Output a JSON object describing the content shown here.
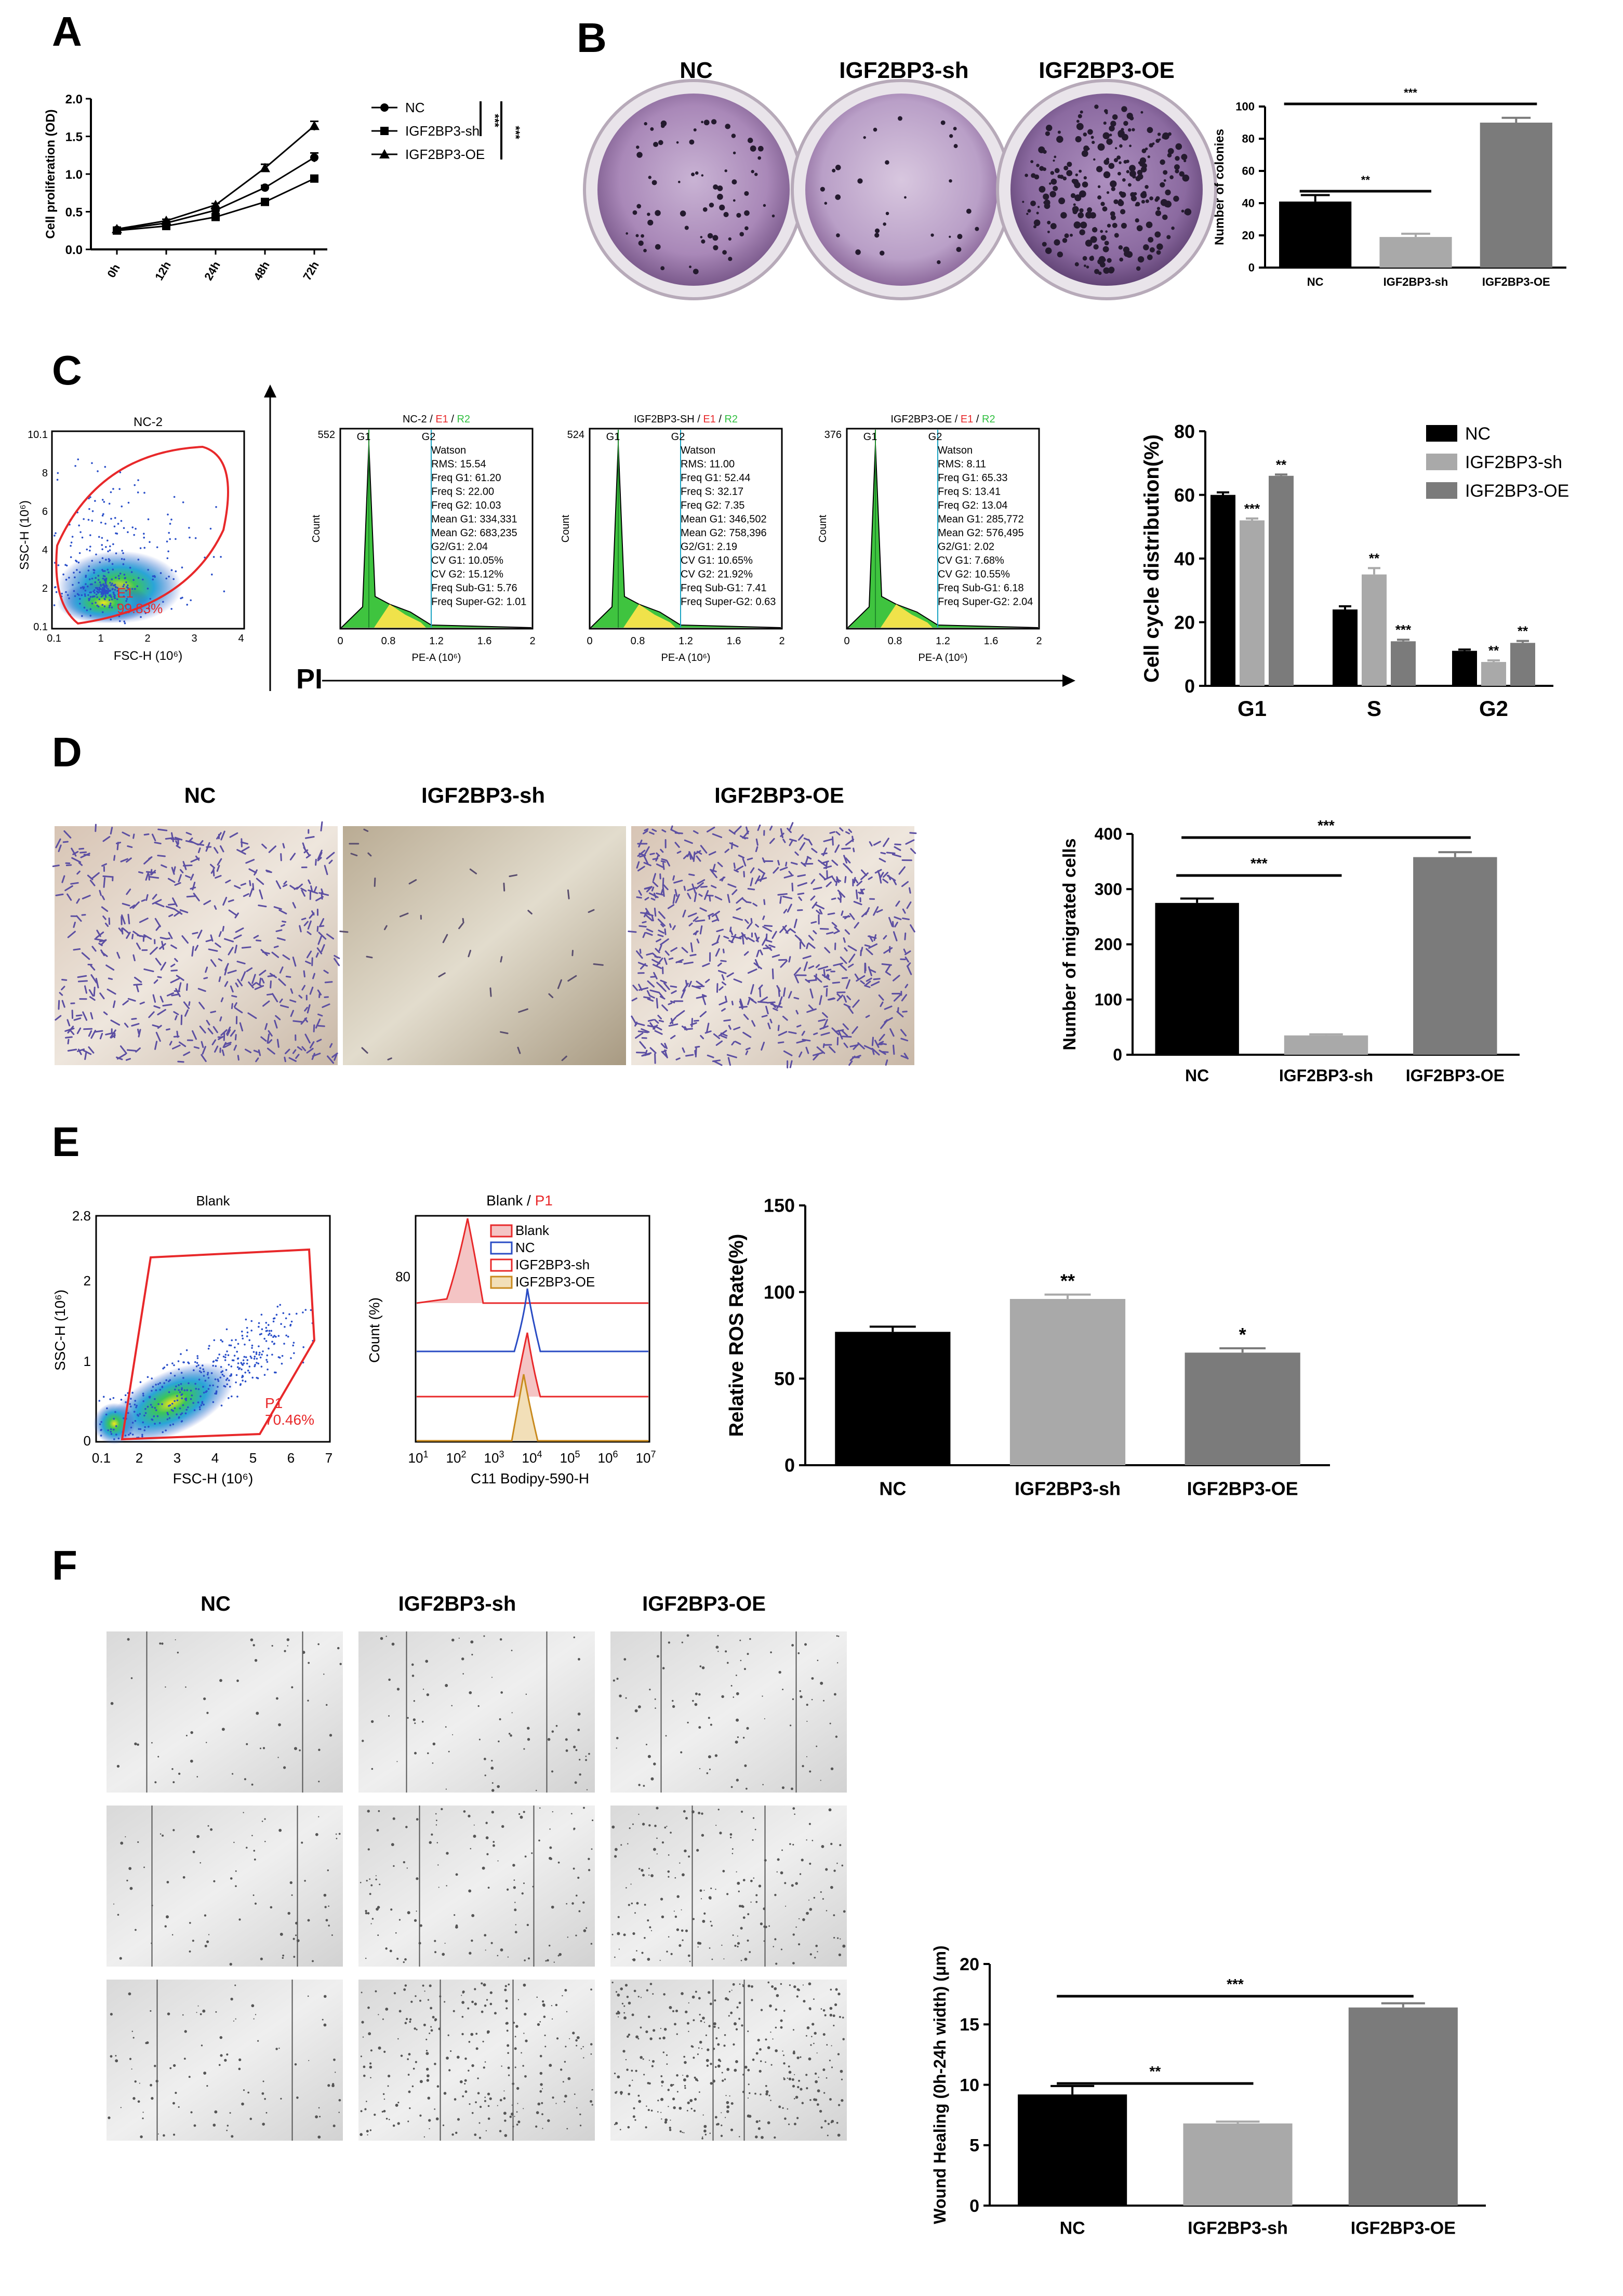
{
  "colors": {
    "black": "#000000",
    "light": "#a9a9a9",
    "dark": "#7b7b7b",
    "gate": "#e8282a",
    "green": "#2fbf3f",
    "blueline": "#2a4cc4",
    "orange": "#c98a1e"
  },
  "panels": {
    "A": "A",
    "B": "B",
    "C": "C",
    "D": "D",
    "E": "E",
    "F": "F"
  },
  "groups": {
    "nc": "NC",
    "sh": "IGF2BP3-sh",
    "oe": "IGF2BP3-OE"
  },
  "sig": {
    "s3": "***",
    "s2": "**",
    "s1": "*"
  },
  "chart_data": [
    {
      "id": "A",
      "type": "line",
      "ylabel": "Cell proliferation (OD)",
      "ylim": [
        0,
        2.0
      ],
      "yticks": [
        "0.0",
        "0.5",
        "1.0",
        "1.5",
        "2.0"
      ],
      "categories": [
        "0h",
        "12h",
        "24h",
        "48h",
        "72h"
      ],
      "series": [
        {
          "name": "NC",
          "marker": "circle",
          "values": [
            0.26,
            0.35,
            0.52,
            0.82,
            1.22
          ],
          "err": [
            0.01,
            0.02,
            0.02,
            0.03,
            0.06
          ]
        },
        {
          "name": "IGF2BP3-sh",
          "marker": "square",
          "values": [
            0.25,
            0.31,
            0.43,
            0.63,
            0.94
          ],
          "err": [
            0.01,
            0.01,
            0.02,
            0.03,
            0.02
          ]
        },
        {
          "name": "IGF2BP3-OE",
          "marker": "triangle",
          "values": [
            0.27,
            0.38,
            0.59,
            1.08,
            1.64
          ],
          "err": [
            0.01,
            0.02,
            0.02,
            0.05,
            0.06
          ]
        }
      ],
      "annotations": [
        "***",
        "***"
      ]
    },
    {
      "id": "B",
      "type": "bar",
      "ylabel": "Number of colonies",
      "ylim": [
        0,
        100
      ],
      "yticks": [
        "0",
        "20",
        "40",
        "60",
        "80",
        "100"
      ],
      "categories": [
        "NC",
        "IGF2BP3-sh",
        "IGF2BP3-OE"
      ],
      "values": [
        41,
        19,
        90
      ],
      "err": [
        4,
        2,
        3
      ]
    },
    {
      "id": "C",
      "type": "bar",
      "ylabel": "Cell cycle distribution(%)",
      "ylim": [
        0,
        80
      ],
      "yticks": [
        "0",
        "20",
        "40",
        "60",
        "80"
      ],
      "categories": [
        "G1",
        "S",
        "G2"
      ],
      "series": [
        {
          "name": "NC",
          "values": [
            60,
            24,
            11
          ],
          "err": [
            0.8,
            1,
            0.4
          ],
          "sig": [
            "",
            "",
            ""
          ]
        },
        {
          "name": "IGF2BP3-sh",
          "values": [
            52,
            35,
            7.5
          ],
          "err": [
            0.6,
            2,
            0.5
          ],
          "sig": [
            "***",
            "**",
            "**"
          ]
        },
        {
          "name": "IGF2BP3-OE",
          "values": [
            66,
            14,
            13.5
          ],
          "err": [
            0.4,
            0.5,
            0.6
          ],
          "sig": [
            "**",
            "***",
            "**"
          ]
        }
      ]
    },
    {
      "id": "D",
      "type": "bar",
      "ylabel": "Number of migrated cells",
      "ylim": [
        0,
        400
      ],
      "yticks": [
        "0",
        "100",
        "200",
        "300",
        "400"
      ],
      "categories": [
        "NC",
        "IGF2BP3-sh",
        "IGF2BP3-OE"
      ],
      "values": [
        275,
        35,
        358
      ],
      "err": [
        8,
        2,
        9
      ]
    },
    {
      "id": "E",
      "type": "bar",
      "ylabel": "Relative ROS Rate(%)",
      "ylim": [
        0,
        150
      ],
      "yticks": [
        "0",
        "50",
        "100",
        "150"
      ],
      "categories": [
        "NC",
        "IGF2BP3-sh",
        "IGF2BP3-OE"
      ],
      "values": [
        77,
        96,
        65
      ],
      "err": [
        3,
        2.5,
        2.5
      ],
      "sig": [
        "",
        "**",
        "*"
      ]
    },
    {
      "id": "F",
      "type": "bar",
      "ylabel": "Wound Healing (0h-24h width) (μm)",
      "ylim": [
        0,
        20
      ],
      "yticks": [
        "0",
        "5",
        "10",
        "15",
        "20"
      ],
      "categories": [
        "NC",
        "IGF2BP3-sh",
        "IGF2BP3-OE"
      ],
      "values": [
        9.2,
        6.8,
        16.4
      ],
      "err": [
        0.7,
        0.15,
        0.35
      ]
    }
  ],
  "flowC": {
    "scatter_title": "NC-2",
    "ylabel": "SSC-H (10⁶)",
    "xlabel": "FSC-H (10⁶)",
    "yticks": [
      "0.1",
      "2",
      "4",
      "6",
      "8",
      "10.1"
    ],
    "xticks": [
      "0.1",
      "1",
      "2",
      "3",
      "4"
    ],
    "gate_name": "E1",
    "gate_pct": "99.83%",
    "axis_label": "PI",
    "hist_xlabel": "PE-A (10⁶)",
    "hist_ylabel": "Count",
    "hist_xticks": [
      "0",
      "0.8",
      "1.2",
      "1.6",
      "2"
    ],
    "hists": [
      {
        "title": "NC-2 / ",
        "e1": "E1",
        "sep": " / ",
        "r2": "R2",
        "ymax": "552",
        "lines": [
          "Watson",
          "RMS: 15.54",
          "Freq G1: 61.20",
          "Freq S: 22.00",
          "Freq G2: 10.03",
          "Mean G1: 334,331",
          "Mean G2: 683,235",
          "G2/G1: 2.04",
          "CV G1: 10.05%",
          "CV G2: 15.12%",
          "Freq Sub-G1: 5.76",
          "Freq Super-G2: 1.01"
        ]
      },
      {
        "title": "IGF2BP3-SH / ",
        "e1": "E1",
        "sep": " / ",
        "r2": "R2",
        "ymax": "524",
        "lines": [
          "Watson",
          "RMS: 11.00",
          "Freq G1: 52.44",
          "Freq S: 32.17",
          "Freq G2: 7.35",
          "Mean G1: 346,502",
          "Mean G2: 758,396",
          "G2/G1: 2.19",
          "CV G1: 10.65%",
          "CV G2: 21.92%",
          "Freq Sub-G1: 7.41",
          "Freq Super-G2: 0.63"
        ]
      },
      {
        "title": "IGF2BP3-OE / ",
        "e1": "E1",
        "sep": " / ",
        "r2": "R2",
        "ymax": "376",
        "lines": [
          "Watson",
          "RMS: 8.11",
          "Freq G1: 65.33",
          "Freq S: 13.41",
          "Freq G2: 13.04",
          "Mean G1: 285,772",
          "Mean G2: 576,495",
          "G2/G1: 2.02",
          "CV G1: 7.68%",
          "CV G2: 10.55%",
          "Freq Sub-G1: 6.18",
          "Freq Super-G2: 2.04"
        ]
      }
    ]
  },
  "flowE": {
    "scatter_title": "Blank",
    "ylabel": "SSC-H (10⁶)",
    "xlabel": "FSC-H (10⁶)",
    "yticks": [
      "0",
      "1",
      "2",
      "2.8"
    ],
    "xticks": [
      "0.1",
      "2",
      "3",
      "4",
      "5",
      "6",
      "7"
    ],
    "gate_name": "P1",
    "gate_pct": "70.46%",
    "hist_title": "Blank / ",
    "hist_gate": "P1",
    "hist_ylabel": "Count (%)",
    "hist_xlabel": "C11 Bodipy-590-H",
    "hist_ytick": "80",
    "legend": [
      "Blank",
      "NC",
      "IGF2BP3-sh",
      "IGF2BP3-OE"
    ]
  }
}
